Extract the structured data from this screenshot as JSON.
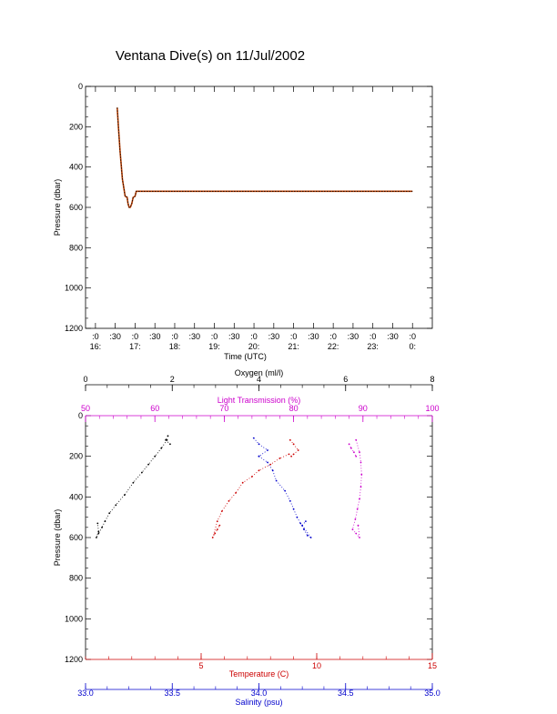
{
  "colors": {
    "black": "#000000",
    "magenta": "#cc00cc",
    "red": "#cc0000",
    "blue": "#0000cc",
    "trace_red": "#c04000"
  },
  "chart_data": [
    {
      "type": "line",
      "title": "Ventana Dive(s) on 11/Jul/2002",
      "xlabel": "Time (UTC)",
      "ylabel": "Pressure (dbar)",
      "x_range_hours": [
        15.75,
        24.5
      ],
      "ylim": [
        1200,
        0
      ],
      "y_ticks": [
        0,
        200,
        400,
        600,
        800,
        1000,
        1200
      ],
      "x_ticks": [
        {
          "h": 16.0,
          "top": ":0",
          "bottom": "16:"
        },
        {
          "h": 16.5,
          "top": ":30",
          "bottom": ""
        },
        {
          "h": 17.0,
          "top": ":0",
          "bottom": "17:"
        },
        {
          "h": 17.5,
          "top": ":30",
          "bottom": ""
        },
        {
          "h": 18.0,
          "top": ":0",
          "bottom": "18:"
        },
        {
          "h": 18.5,
          "top": ":30",
          "bottom": ""
        },
        {
          "h": 19.0,
          "top": ":0",
          "bottom": "19:"
        },
        {
          "h": 19.5,
          "top": ":30",
          "bottom": ""
        },
        {
          "h": 20.0,
          "top": ":0",
          "bottom": "20:"
        },
        {
          "h": 20.5,
          "top": ":30",
          "bottom": ""
        },
        {
          "h": 21.0,
          "top": ":0",
          "bottom": "21:"
        },
        {
          "h": 21.5,
          "top": ":30",
          "bottom": ""
        },
        {
          "h": 22.0,
          "top": ":0",
          "bottom": "22:"
        },
        {
          "h": 22.5,
          "top": ":30",
          "bottom": ""
        },
        {
          "h": 23.0,
          "top": ":0",
          "bottom": "23:"
        },
        {
          "h": 23.5,
          "top": ":30",
          "bottom": ""
        },
        {
          "h": 24.0,
          "top": ":0",
          "bottom": "0:"
        }
      ],
      "series": [
        {
          "x": [
            16.55,
            16.58,
            16.62,
            16.68,
            16.75,
            16.8,
            16.82,
            16.85,
            16.88,
            16.92,
            16.95,
            17.0,
            17.03,
            17.1,
            17.3,
            18.0,
            20.0,
            22.0,
            24.0
          ],
          "y": [
            105,
            200,
            320,
            460,
            545,
            550,
            580,
            600,
            600,
            580,
            550,
            545,
            520,
            520,
            520,
            520,
            520,
            520,
            520
          ]
        }
      ]
    },
    {
      "type": "scatter",
      "ylabel": "Pressure (dbar)",
      "ylim": [
        1200,
        0
      ],
      "y_ticks": [
        0,
        200,
        400,
        600,
        800,
        1000,
        1200
      ],
      "axes": {
        "oxygen": {
          "label": "Oxygen (ml/l)",
          "range": [
            0,
            8
          ],
          "ticks": [
            0,
            2,
            4,
            6,
            8
          ],
          "minor": 4
        },
        "transmission": {
          "label": "Light Transmission (%)",
          "range": [
            50,
            100
          ],
          "ticks": [
            50,
            60,
            70,
            80,
            90,
            100
          ],
          "minor": 5
        },
        "temperature": {
          "label": "Temperature (C)",
          "range": [
            0,
            15
          ],
          "ticks": [
            5,
            10,
            15
          ],
          "minor": 5
        },
        "salinity": {
          "label": "Salinity (psu)",
          "range": [
            33.0,
            35.0
          ],
          "ticks": [
            "33.0",
            "33.5",
            "34.0",
            "34.5",
            "35.0"
          ],
          "minor": 4
        }
      },
      "series": [
        {
          "axis": "oxygen",
          "color": "black",
          "x": [
            1.88,
            1.75,
            1.6,
            1.45,
            1.3,
            1.1,
            0.9,
            0.7,
            0.55,
            0.45,
            0.38,
            0.3,
            0.25,
            0.3,
            0.28
          ],
          "y": [
            120,
            160,
            200,
            240,
            280,
            330,
            390,
            440,
            480,
            520,
            550,
            580,
            600,
            570,
            530
          ]
        },
        {
          "axis": "oxygen",
          "color": "black",
          "x": [
            1.9,
            1.85,
            1.95
          ],
          "y": [
            100,
            120,
            140
          ]
        },
        {
          "axis": "temperature",
          "color": "red",
          "x": [
            8.8,
            8.4,
            8.0,
            7.5,
            7.2,
            6.8,
            6.5,
            6.2,
            5.9,
            5.7,
            5.5,
            5.6,
            5.7,
            5.8
          ],
          "y": [
            190,
            210,
            240,
            270,
            300,
            330,
            380,
            420,
            470,
            520,
            600,
            580,
            560,
            540
          ]
        },
        {
          "axis": "temperature",
          "color": "red",
          "x": [
            8.85,
            9.0,
            9.2,
            9.0,
            8.9
          ],
          "y": [
            120,
            140,
            170,
            190,
            200
          ]
        },
        {
          "axis": "salinity",
          "color": "blue",
          "x": [
            34.0,
            34.05,
            34.08,
            34.1,
            34.15,
            34.18,
            34.2,
            34.22,
            34.24,
            34.26,
            34.28,
            34.3,
            34.25,
            34.27
          ],
          "y": [
            200,
            230,
            270,
            320,
            370,
            420,
            460,
            500,
            530,
            560,
            590,
            600,
            540,
            520
          ]
        },
        {
          "axis": "salinity",
          "color": "blue",
          "x": [
            33.97,
            34.0,
            34.05,
            34.0
          ],
          "y": [
            110,
            140,
            170,
            200
          ]
        },
        {
          "axis": "transmission",
          "color": "magenta",
          "x": [
            89.0,
            89.5,
            89.7,
            89.8,
            89.7,
            89.5,
            89.2,
            88.9,
            88.5,
            89.0,
            89.5,
            89.3
          ],
          "y": [
            120,
            180,
            230,
            290,
            350,
            410,
            460,
            510,
            560,
            580,
            600,
            540
          ]
        },
        {
          "axis": "transmission",
          "color": "magenta",
          "x": [
            88.0,
            88.3,
            88.7,
            89.0
          ],
          "y": [
            140,
            160,
            180,
            200
          ]
        }
      ]
    }
  ]
}
